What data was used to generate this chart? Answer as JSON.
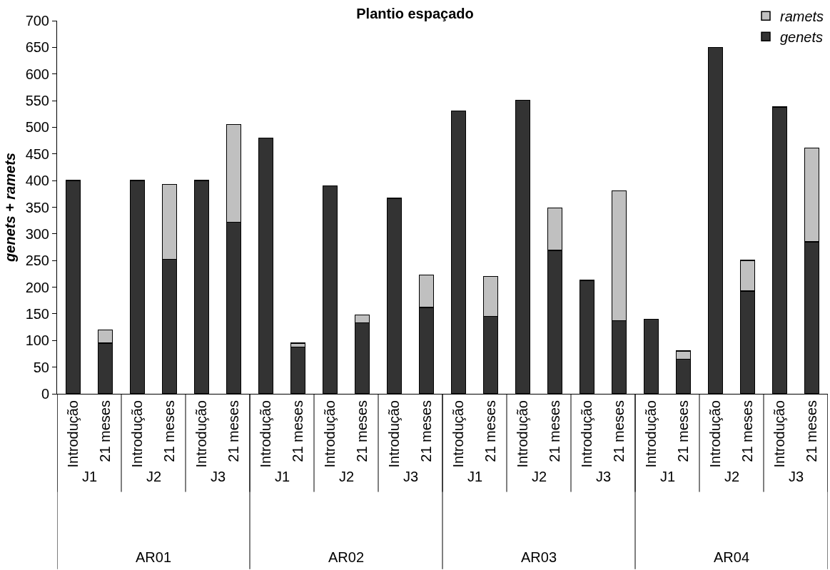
{
  "chart_data": {
    "type": "bar",
    "title": "Plantio espaçado",
    "ylabel": "genets + ramets",
    "stacked": true,
    "legend": "top right",
    "grid": false,
    "categories": [
      "Introdução",
      "21 meses",
      "Introdução",
      "21 meses",
      "Introdução",
      "21 meses",
      "Introdução",
      "21 meses",
      "Introdução",
      "21 meses",
      "Introdução",
      "21 meses",
      "Introdução",
      "21 meses",
      "Introdução",
      "21 meses",
      "Introdução",
      "21 meses",
      "Introdução",
      "21 meses",
      "Introdução",
      "21 meses",
      "Introdução",
      "21 meses"
    ],
    "annotations": [
      "J1",
      "J2",
      "J3",
      "J1",
      "J2",
      "J3",
      "J1",
      "J2",
      "J3",
      "J1",
      "J2",
      "J3",
      "AR01",
      "AR02",
      "AR03",
      "AR04"
    ],
    "series": [
      {
        "name": "genets",
        "color": "#333333",
        "values": [
          400,
          95,
          400,
          252,
          400,
          322,
          480,
          88,
          390,
          133,
          367,
          162,
          531,
          145,
          551,
          269,
          213,
          137,
          140,
          65,
          650,
          193,
          538,
          285
        ]
      },
      {
        "name": "ramets",
        "color": "#c0c0c0",
        "values": [
          null,
          25,
          null,
          141,
          null,
          183,
          null,
          7,
          null,
          15,
          null,
          61,
          null,
          75,
          null,
          80,
          null,
          244,
          null,
          15,
          null,
          57,
          null,
          176
        ]
      }
    ],
    "ylim": [
      0,
      700
    ],
    "yticks": [
      0,
      50,
      100,
      150,
      200,
      250,
      300,
      350,
      400,
      450,
      500,
      550,
      600,
      650,
      700
    ]
  }
}
